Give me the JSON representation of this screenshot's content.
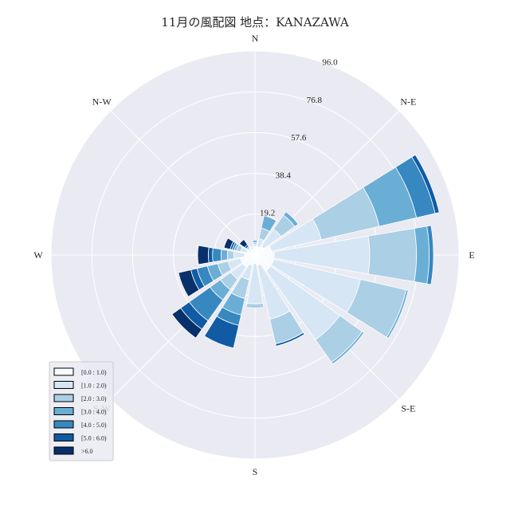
{
  "chart_data": {
    "type": "windrose",
    "title": "11月の風配図 地点：KANAZAWA",
    "directions": [
      "N",
      "N-E",
      "E",
      "S-E",
      "S",
      "S-W",
      "W",
      "N-W"
    ],
    "radial_ticks": [
      "19.2",
      "38.4",
      "57.6",
      "76.8",
      "96.0"
    ],
    "radial_max": 96.0,
    "grid": true,
    "legend_placement": "lower-left",
    "sectors_degrees_from_north_clockwise": [
      0,
      22.5,
      45,
      67.5,
      90,
      112.5,
      135,
      157.5,
      180,
      202.5,
      225,
      247.5,
      270,
      292.5,
      315,
      337.5
    ],
    "series": [
      {
        "name": "[0.0 : 1.0)",
        "color": "#f7fbff",
        "values": [
          4,
          4,
          5,
          8,
          9,
          9,
          9,
          5,
          4,
          5,
          7,
          7,
          5,
          4,
          3,
          3
        ]
      },
      {
        "name": "[1.0 : 2.0)",
        "color": "#d6e6f4",
        "values": [
          1,
          4,
          10,
          24,
          45,
          42,
          40,
          26,
          19,
          7,
          7,
          6,
          5,
          3,
          1,
          1
        ]
      },
      {
        "name": "[2.0 : 3.0)",
        "color": "#abcfe5",
        "values": [
          1,
          5,
          8,
          28,
          22,
          22,
          13,
          12,
          2,
          9,
          6,
          5,
          3,
          2,
          1,
          0
        ]
      },
      {
        "name": "[3.0 : 4.0)",
        "color": "#6aaed6",
        "values": [
          1,
          6,
          2,
          18,
          6,
          1,
          1,
          0,
          0,
          8,
          6,
          5,
          3,
          1,
          0,
          0
        ]
      },
      {
        "name": "[4.0 : 5.0)",
        "color": "#3787c0",
        "values": [
          0,
          0,
          0,
          9,
          2,
          0,
          0,
          0,
          0,
          5,
          12,
          5,
          4,
          1,
          0,
          0
        ]
      },
      {
        "name": "[5.0 : 6.0)",
        "color": "#105ba4",
        "values": [
          0,
          0,
          0,
          2,
          0,
          0,
          0,
          1,
          0,
          11,
          5,
          3,
          2,
          1,
          1,
          0
        ]
      },
      {
        "name": ">6.0",
        "color": "#08306b",
        "values": [
          0,
          0,
          0,
          0,
          0,
          0,
          0,
          0,
          0,
          0,
          5,
          6,
          5,
          3,
          3,
          0
        ]
      }
    ]
  }
}
